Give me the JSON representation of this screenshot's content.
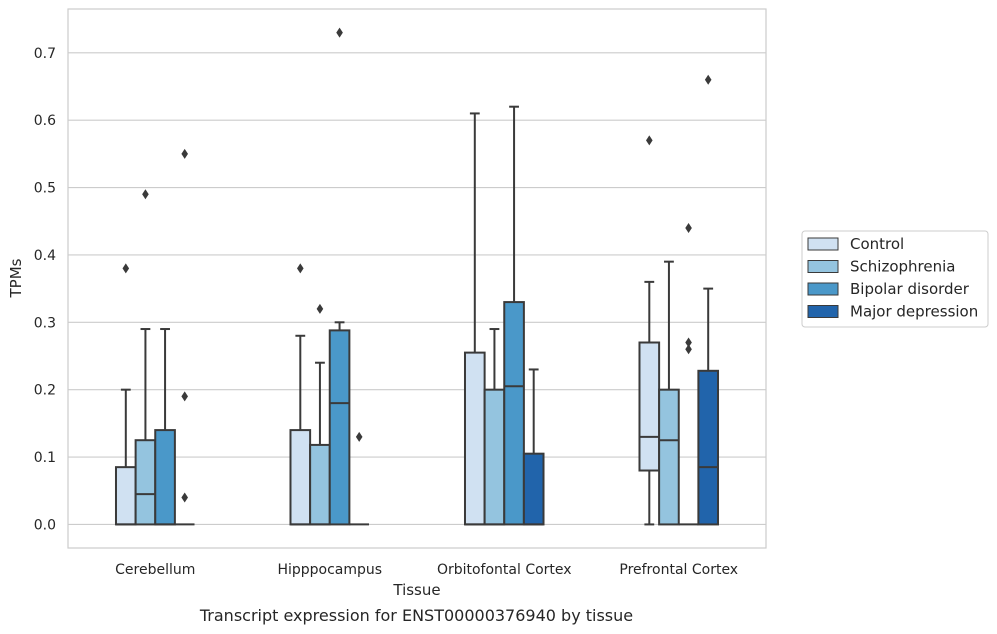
{
  "chart_data": {
    "type": "box",
    "xlabel": "Tissue",
    "ylabel": "TPMs",
    "caption": "Transcript expression for ENST00000376940 by tissue",
    "categories": [
      "Cerebellum",
      "Hipppocampus",
      "Orbitofontal Cortex",
      "Prefrontal Cortex"
    ],
    "ylim": [
      -0.035,
      0.765
    ],
    "yticks": [
      "0.0",
      "0.1",
      "0.2",
      "0.3",
      "0.4",
      "0.5",
      "0.6",
      "0.7"
    ],
    "grid": true,
    "legend_position": "right",
    "series": [
      {
        "name": "Control",
        "color": "#d0e1f2",
        "boxes": [
          {
            "q1": 0.0,
            "median": 0.0,
            "q3": 0.085,
            "whisker_low": 0.0,
            "whisker_high": 0.2,
            "outliers": [
              0.38
            ]
          },
          {
            "q1": 0.0,
            "median": 0.0,
            "q3": 0.14,
            "whisker_low": 0.0,
            "whisker_high": 0.28,
            "outliers": [
              0.38
            ]
          },
          {
            "q1": 0.0,
            "median": 0.0,
            "q3": 0.255,
            "whisker_low": 0.0,
            "whisker_high": 0.61,
            "outliers": []
          },
          {
            "q1": 0.08,
            "median": 0.13,
            "q3": 0.27,
            "whisker_low": 0.0,
            "whisker_high": 0.36,
            "outliers": [
              0.57
            ]
          }
        ]
      },
      {
        "name": "Schizophrenia",
        "color": "#94c4df",
        "boxes": [
          {
            "q1": 0.0,
            "median": 0.045,
            "q3": 0.125,
            "whisker_low": 0.0,
            "whisker_high": 0.29,
            "outliers": [
              0.49
            ]
          },
          {
            "q1": 0.0,
            "median": 0.0,
            "q3": 0.118,
            "whisker_low": 0.0,
            "whisker_high": 0.24,
            "outliers": [
              0.32
            ]
          },
          {
            "q1": 0.0,
            "median": 0.0,
            "q3": 0.2,
            "whisker_low": 0.0,
            "whisker_high": 0.29,
            "outliers": []
          },
          {
            "q1": 0.0,
            "median": 0.125,
            "q3": 0.2,
            "whisker_low": 0.0,
            "whisker_high": 0.39,
            "outliers": []
          }
        ]
      },
      {
        "name": "Bipolar disorder",
        "color": "#4a98c9",
        "boxes": [
          {
            "q1": 0.0,
            "median": 0.0,
            "q3": 0.14,
            "whisker_low": 0.0,
            "whisker_high": 0.29,
            "outliers": []
          },
          {
            "q1": 0.0,
            "median": 0.18,
            "q3": 0.288,
            "whisker_low": 0.0,
            "whisker_high": 0.3,
            "outliers": [
              0.73
            ]
          },
          {
            "q1": 0.0,
            "median": 0.205,
            "q3": 0.33,
            "whisker_low": 0.0,
            "whisker_high": 0.62,
            "outliers": []
          },
          {
            "q1": 0.0,
            "median": 0.0,
            "q3": 0.0,
            "whisker_low": 0.0,
            "whisker_high": 0.0,
            "outliers": [
              0.26,
              0.27,
              0.44
            ]
          }
        ]
      },
      {
        "name": "Major depression",
        "color": "#2164ab",
        "boxes": [
          {
            "q1": 0.0,
            "median": 0.0,
            "q3": 0.0,
            "whisker_low": 0.0,
            "whisker_high": 0.0,
            "outliers": [
              0.04,
              0.19,
              0.55
            ]
          },
          {
            "q1": 0.0,
            "median": 0.0,
            "q3": 0.0,
            "whisker_low": 0.0,
            "whisker_high": 0.0,
            "outliers": [
              0.13
            ]
          },
          {
            "q1": 0.0,
            "median": 0.0,
            "q3": 0.105,
            "whisker_low": 0.0,
            "whisker_high": 0.23,
            "outliers": []
          },
          {
            "q1": 0.0,
            "median": 0.085,
            "q3": 0.228,
            "whisker_low": 0.0,
            "whisker_high": 0.35,
            "outliers": [
              0.66
            ]
          }
        ]
      }
    ],
    "colors": {
      "grid": "#cccccc",
      "frame": "#cccccc",
      "line": "#3a3a3a",
      "background": "#ffffff"
    }
  }
}
